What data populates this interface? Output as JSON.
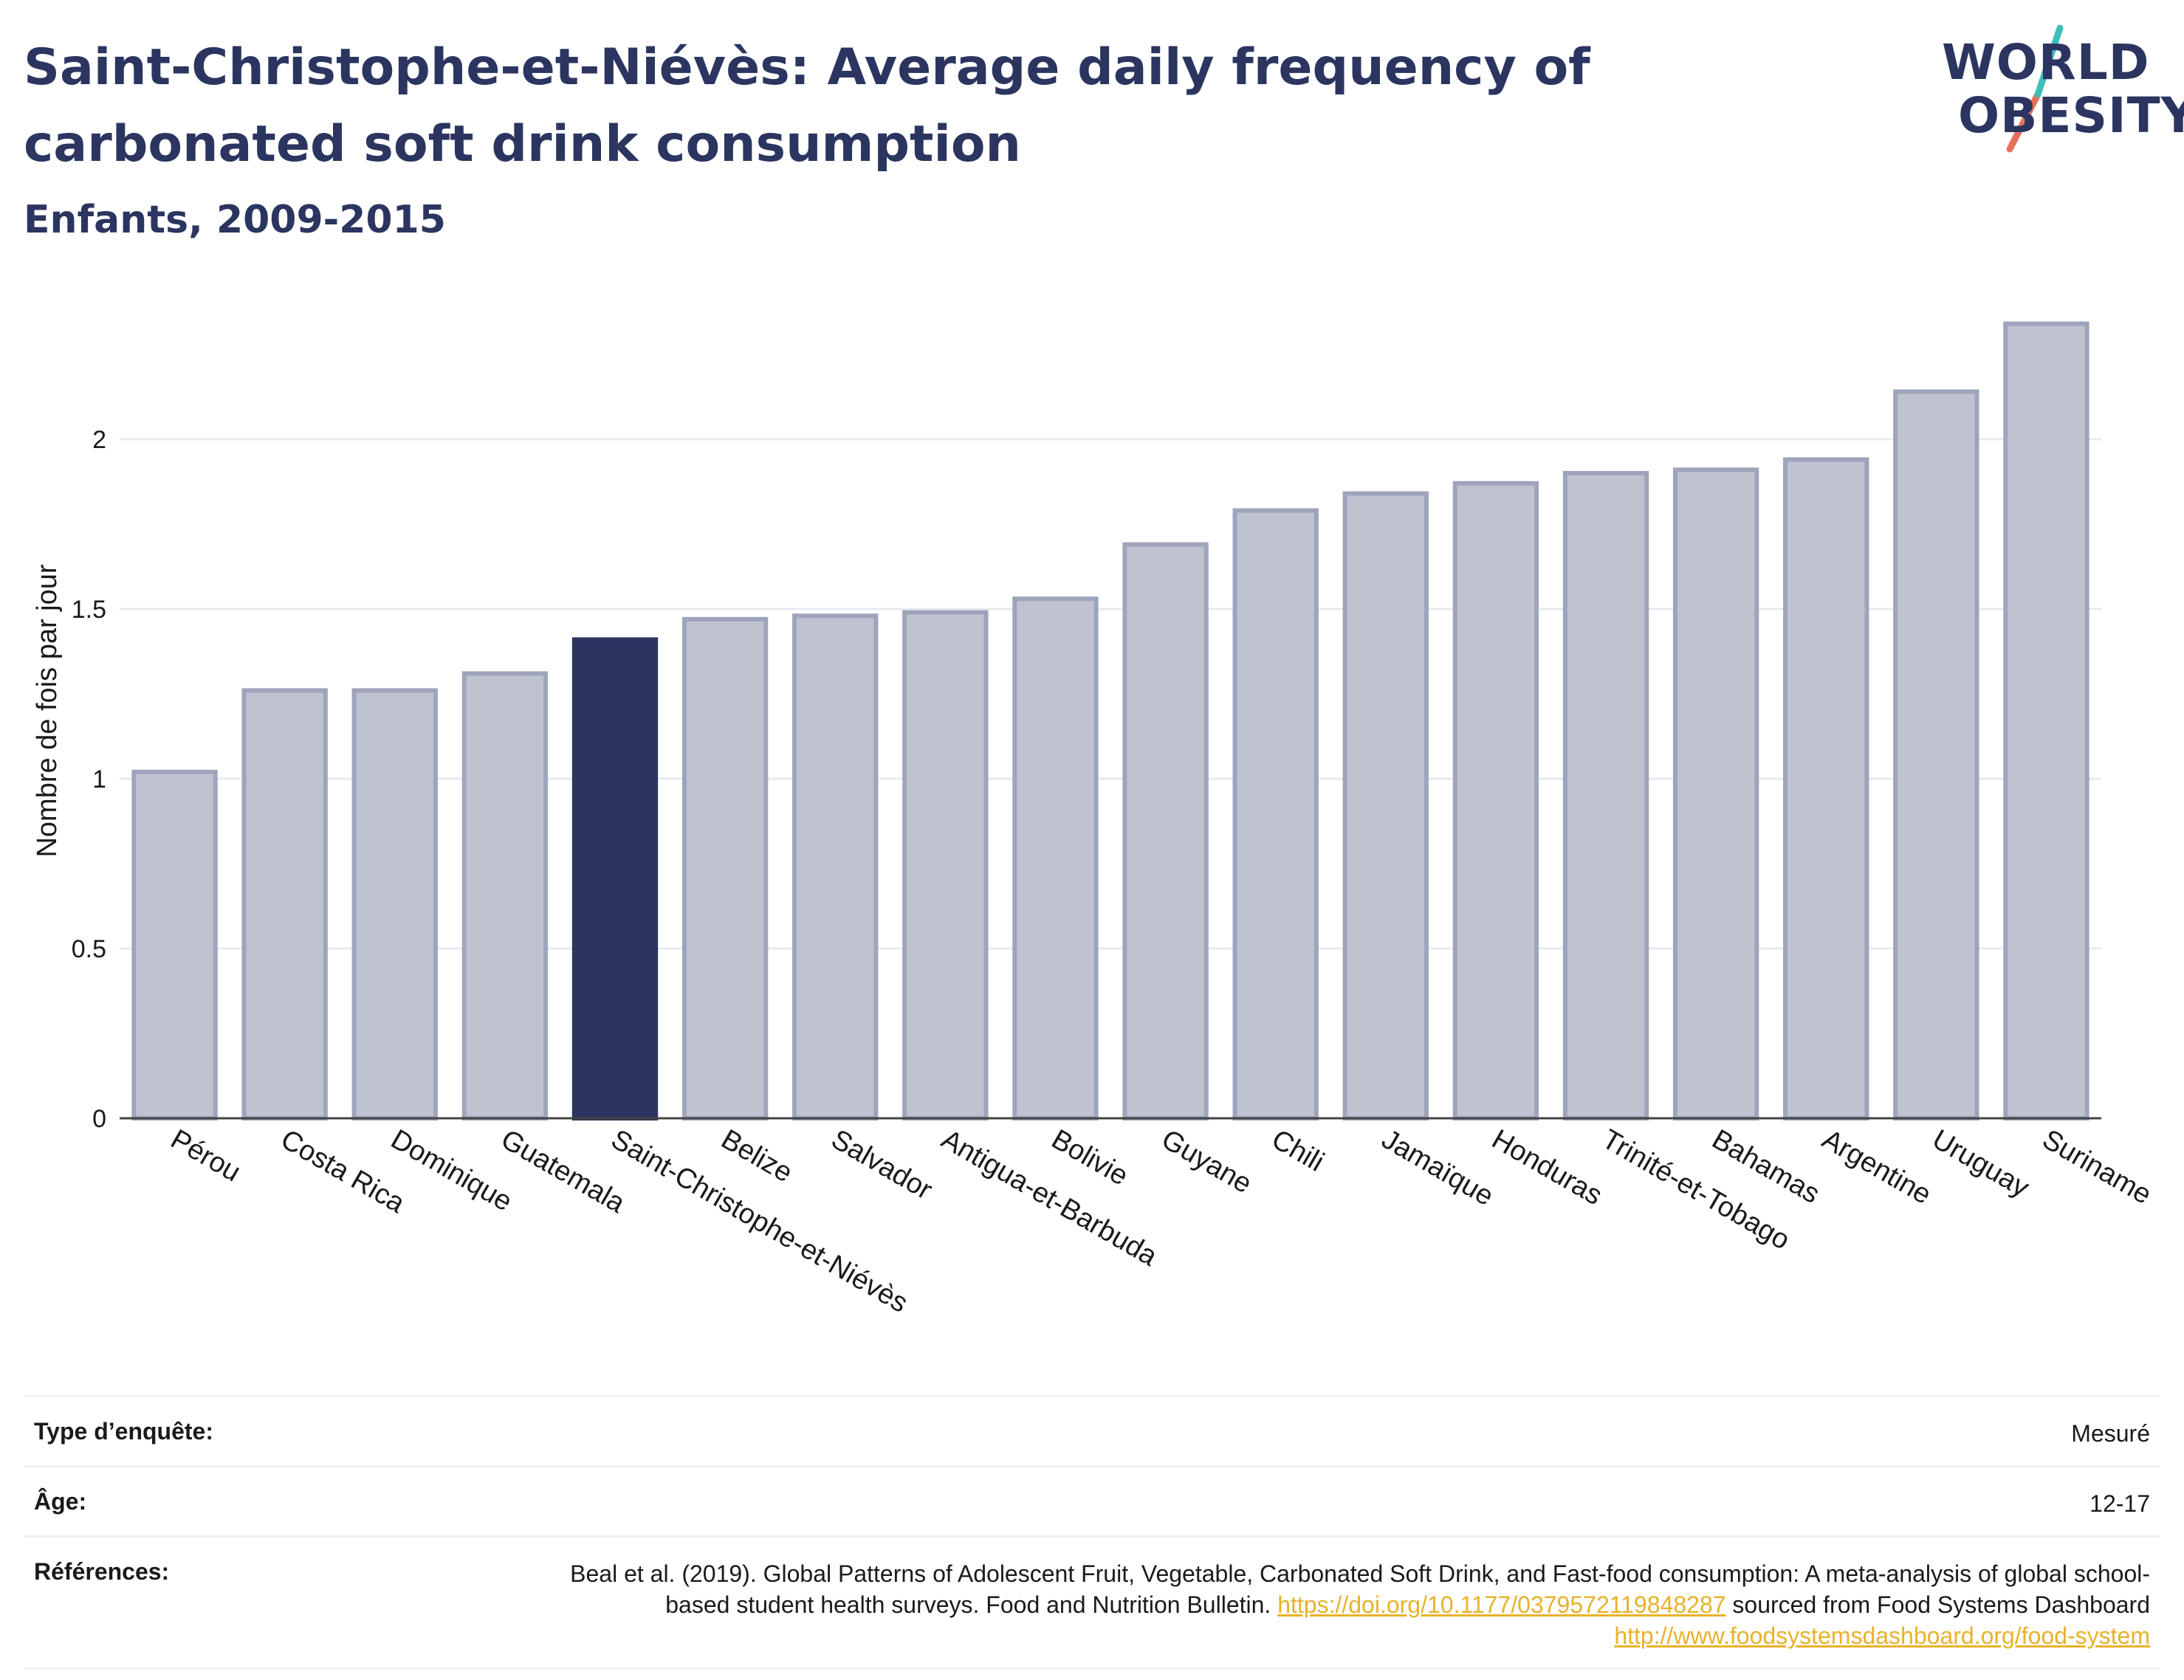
{
  "header": {
    "title": "Saint-Christophe-et-Niévès: Average daily frequency of carbonated soft drink consumption",
    "subtitle": "Enfants, 2009-2015"
  },
  "logo": {
    "line1": "WORLD",
    "line2": "OBESITY"
  },
  "colors": {
    "highlight": "#2b3560",
    "bar": "#bfc3d0",
    "bar_border": "#9ea4bb",
    "text": "#2b3560"
  },
  "chart_data": {
    "type": "bar",
    "title": "Saint-Christophe-et-Niévès: Average daily frequency of carbonated soft drink consumption",
    "subtitle": "Enfants, 2009-2015",
    "ylabel": "Nombre de fois par jour",
    "xlabel": "",
    "ylim": [
      0,
      2.4
    ],
    "yticks": [
      0,
      0.5,
      1,
      1.5,
      2
    ],
    "ytick_labels": [
      "0",
      "0.5",
      "1",
      "1.5",
      "2"
    ],
    "grid": true,
    "highlight": "Saint-Christophe-et-Niévès",
    "categories": [
      "Pérou",
      "Costa Rica",
      "Dominique",
      "Guatemala",
      "Saint-Christophe-et-Niévès",
      "Belize",
      "Salvador",
      "Antigua-et-Barbuda",
      "Bolivie",
      "Guyane",
      "Chili",
      "Jamaïque",
      "Honduras",
      "Trinité-et-Tobago",
      "Bahamas",
      "Argentine",
      "Uruguay",
      "Suriname"
    ],
    "values": [
      1.02,
      1.26,
      1.26,
      1.31,
      1.41,
      1.47,
      1.48,
      1.49,
      1.53,
      1.69,
      1.79,
      1.84,
      1.87,
      1.9,
      1.91,
      1.94,
      2.14,
      2.34
    ]
  },
  "meta": {
    "survey_label": "Type d’enquête:",
    "survey_value": "Mesuré",
    "age_label": "Âge:",
    "age_value": "12-17",
    "ref_label": "Références:",
    "ref_text_1": "Beal et al. (2019). Global Patterns of Adolescent Fruit, Vegetable, Carbonated Soft Drink, and Fast-food consumption: A meta-analysis of global school-based student health surveys. Food and Nutrition Bulletin. ",
    "ref_link_1": "https://doi.org/10.1177/0379572119848287",
    "ref_text_2": " sourced from Food Systems Dashboard ",
    "ref_link_2": "http://www.foodsystemsdashboard.org/food-system"
  }
}
